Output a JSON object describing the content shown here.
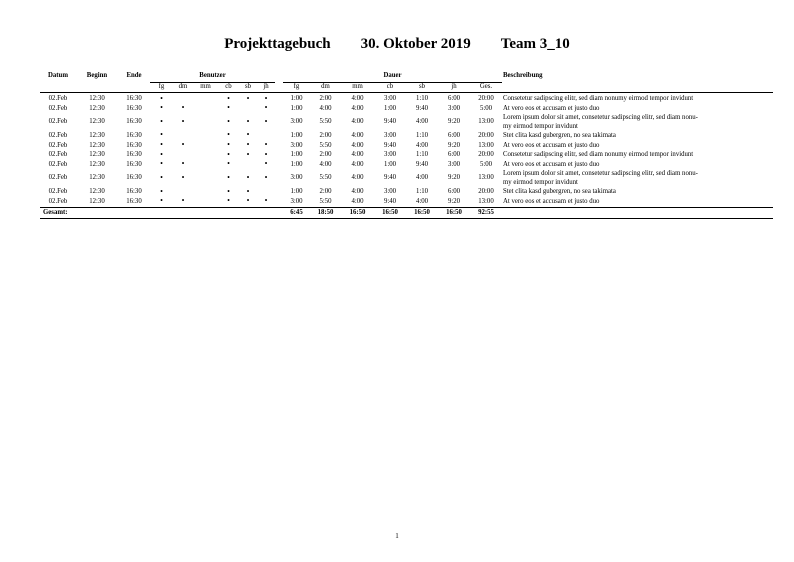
{
  "title": {
    "name": "Projekttagebuch",
    "date": "30. Oktober 2019",
    "team": "Team 3_10"
  },
  "headers": {
    "datum": "Datum",
    "beginn": "Beginn",
    "ende": "Ende",
    "benutzer": "Benutzer",
    "dauer": "Dauer",
    "beschreibung": "Beschreibung"
  },
  "users": [
    "fg",
    "dm",
    "mm",
    "cb",
    "sb",
    "jh"
  ],
  "dauer_cols": [
    "fg",
    "dm",
    "mm",
    "cb",
    "sb",
    "jh",
    "Ges."
  ],
  "dot_symbol": "•",
  "rows": [
    {
      "datum": "02.Feb",
      "beginn": "12:30",
      "ende": "16:30",
      "users": [
        1,
        0,
        0,
        1,
        1,
        1
      ],
      "dauer": [
        "1:00",
        "2:00",
        "4:00",
        "3:00",
        "1:10",
        "6:00",
        "20:00"
      ],
      "desc": [
        "Consetetur sadipscing elitr, sed diam nonumy eirmod tempor invidunt"
      ]
    },
    {
      "datum": "02.Feb",
      "beginn": "12:30",
      "ende": "16:30",
      "users": [
        1,
        1,
        0,
        1,
        0,
        1
      ],
      "dauer": [
        "1:00",
        "4:00",
        "4:00",
        "1:00",
        "9:40",
        "3:00",
        "5:00"
      ],
      "desc": [
        "At vero eos et accusam et justo duo"
      ]
    },
    {
      "datum": "02.Feb",
      "beginn": "12:30",
      "ende": "16:30",
      "users": [
        1,
        1,
        0,
        1,
        1,
        1
      ],
      "dauer": [
        "3:00",
        "5:50",
        "4:00",
        "9:40",
        "4:00",
        "9:20",
        "13:00"
      ],
      "desc": [
        "Lorem ipsum dolor sit amet, consetetur sadipscing elitr, sed diam nonu-",
        "my eirmod tempor invidunt"
      ]
    },
    {
      "datum": "02.Feb",
      "beginn": "12:30",
      "ende": "16:30",
      "users": [
        1,
        0,
        0,
        1,
        1,
        0
      ],
      "dauer": [
        "1:00",
        "2:00",
        "4:00",
        "3:00",
        "1:10",
        "6:00",
        "20:00"
      ],
      "desc": [
        "Stet clita kasd gubergren, no sea takimata"
      ]
    },
    {
      "datum": "02.Feb",
      "beginn": "12:30",
      "ende": "16:30",
      "users": [
        1,
        1,
        0,
        1,
        1,
        1
      ],
      "dauer": [
        "3:00",
        "5:50",
        "4:00",
        "9:40",
        "4:00",
        "9:20",
        "13:00"
      ],
      "desc": [
        "At vero eos et accusam et justo duo"
      ]
    },
    {
      "datum": "02.Feb",
      "beginn": "12:30",
      "ende": "16:30",
      "users": [
        1,
        0,
        0,
        1,
        1,
        1
      ],
      "dauer": [
        "1:00",
        "2:00",
        "4:00",
        "3:00",
        "1:10",
        "6:00",
        "20:00"
      ],
      "desc": [
        "Consetetur sadipscing elitr, sed diam nonumy eirmod tempor invidunt"
      ]
    },
    {
      "datum": "02.Feb",
      "beginn": "12:30",
      "ende": "16:30",
      "users": [
        1,
        1,
        0,
        1,
        0,
        1
      ],
      "dauer": [
        "1:00",
        "4:00",
        "4:00",
        "1:00",
        "9:40",
        "3:00",
        "5:00"
      ],
      "desc": [
        "At vero eos et accusam et justo duo"
      ]
    },
    {
      "datum": "02.Feb",
      "beginn": "12:30",
      "ende": "16:30",
      "users": [
        1,
        1,
        0,
        1,
        1,
        1
      ],
      "dauer": [
        "3:00",
        "5:50",
        "4:00",
        "9:40",
        "4:00",
        "9:20",
        "13:00"
      ],
      "desc": [
        "Lorem ipsum dolor sit amet, consetetur sadipscing elitr, sed diam nonu-",
        "my eirmod tempor invidunt"
      ]
    },
    {
      "datum": "02.Feb",
      "beginn": "12:30",
      "ende": "16:30",
      "users": [
        1,
        0,
        0,
        1,
        1,
        0
      ],
      "dauer": [
        "1:00",
        "2:00",
        "4:00",
        "3:00",
        "1:10",
        "6:00",
        "20:00"
      ],
      "desc": [
        "Stet clita kasd gubergren, no sea takimata"
      ]
    },
    {
      "datum": "02.Feb",
      "beginn": "12:30",
      "ende": "16:30",
      "users": [
        1,
        1,
        0,
        1,
        1,
        1
      ],
      "dauer": [
        "3:00",
        "5:50",
        "4:00",
        "9:40",
        "4:00",
        "9:20",
        "13:00"
      ],
      "desc": [
        "At vero eos et accusam et justo duo"
      ]
    }
  ],
  "total": {
    "label": "Gesamt:",
    "values": [
      "6:45",
      "18:50",
      "16:50",
      "16:50",
      "16:50",
      "16:50",
      "92:55"
    ]
  },
  "page_number": "1"
}
